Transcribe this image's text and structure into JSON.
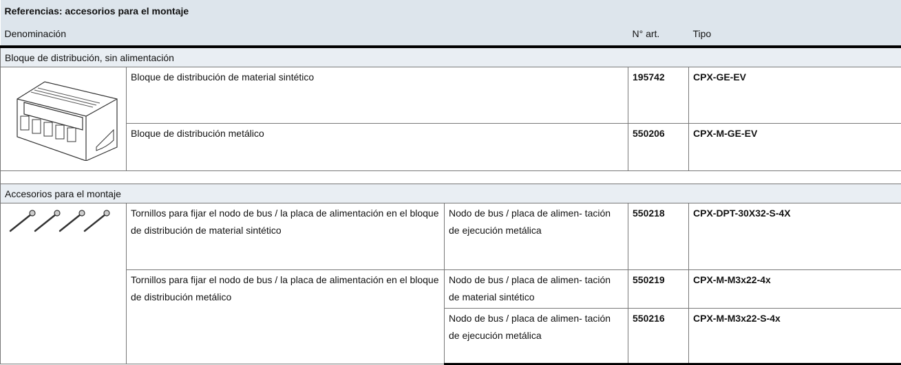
{
  "title": "Referencias: accesorios para el montaje",
  "header": {
    "name": "Denominación",
    "art": "N° art.",
    "tipo": "Tipo"
  },
  "sections": [
    {
      "title": "Bloque de distribución, sin alimentación",
      "rows": [
        {
          "description": "Bloque de distribución de material sintético",
          "variants": [
            {
              "art": "195742",
              "tipo": "CPX-GE-EV"
            }
          ]
        },
        {
          "description": "Bloque de distribución metálico",
          "variants": [
            {
              "art": "550206",
              "tipo": "CPX-M-GE-EV"
            }
          ]
        }
      ]
    },
    {
      "title": "Accesorios para el montaje",
      "rows": [
        {
          "description": "Tornillos para fijar el nodo de bus / la placa de alimentación en el bloque de distribución de material sintético",
          "variants": [
            {
              "note": "Nodo de bus / placa de alimen- tación de ejecución metálica",
              "art": "550218",
              "tipo": "CPX-DPT-30X32-S-4X"
            }
          ]
        },
        {
          "description": "Tornillos para fijar el nodo de bus / la placa de alimentación en el bloque de distribución metálico",
          "variants": [
            {
              "note": "Nodo de bus / placa de alimen- tación de material sintético",
              "art": "550219",
              "tipo": "CPX-M-M3x22-4x"
            },
            {
              "note": "Nodo de bus / placa de alimen- tación de ejecución metálica",
              "art": "550216",
              "tipo": "CPX-M-M3x22-S-4x"
            }
          ]
        }
      ]
    }
  ]
}
